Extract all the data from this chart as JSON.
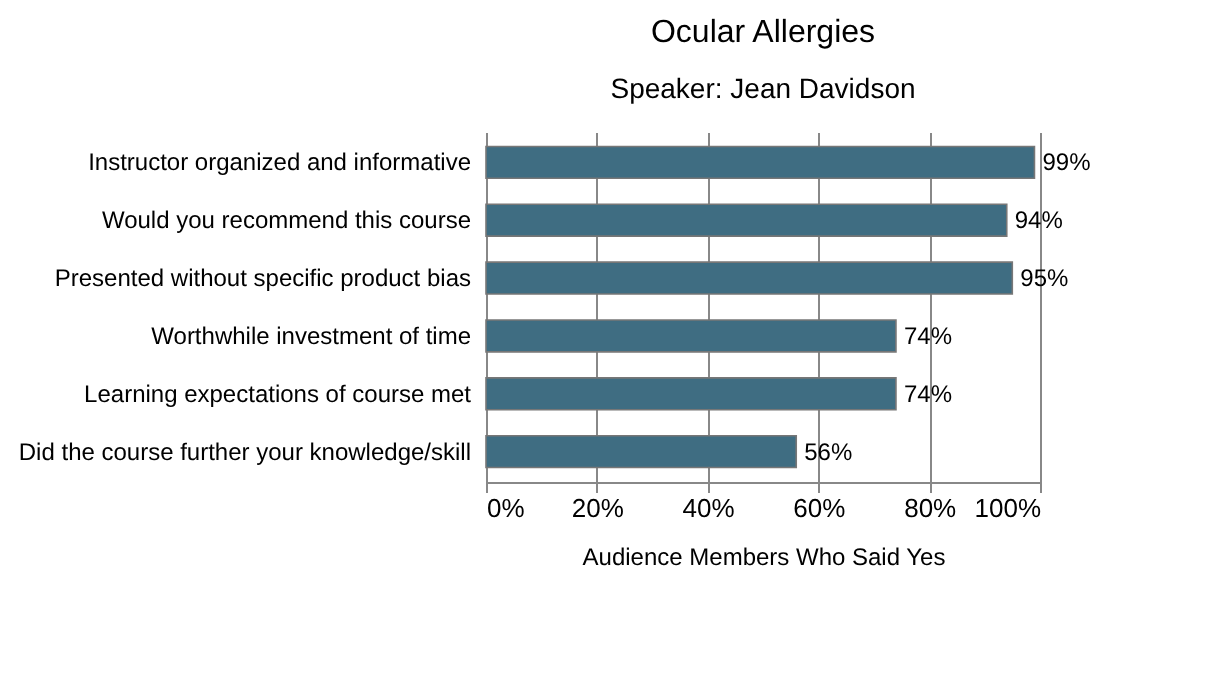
{
  "chart_data": {
    "type": "bar",
    "orientation": "horizontal",
    "title": "Ocular Allergies",
    "subtitle": "Speaker: Jean Davidson",
    "xlabel": "Audience Members Who Said Yes",
    "categories": [
      "Instructor organized and informative",
      "Would you recommend this course",
      "Presented without specific product bias",
      "Worthwhile investment of time",
      "Learning expectations of course met",
      "Did the course further your knowledge/skill"
    ],
    "values": [
      99,
      94,
      95,
      74,
      74,
      56
    ],
    "value_labels": [
      "99%",
      "94%",
      "95%",
      "74%",
      "74%",
      "56%"
    ],
    "color": "#3f6d82",
    "xlim": [
      0,
      100
    ],
    "xticks": [
      {
        "value": 0,
        "label": "0%"
      },
      {
        "value": 20,
        "label": "20%"
      },
      {
        "value": 40,
        "label": "40%"
      },
      {
        "value": 60,
        "label": "60%"
      },
      {
        "value": 80,
        "label": "80%"
      },
      {
        "value": 100,
        "label": "100%"
      }
    ],
    "grid": "x"
  }
}
